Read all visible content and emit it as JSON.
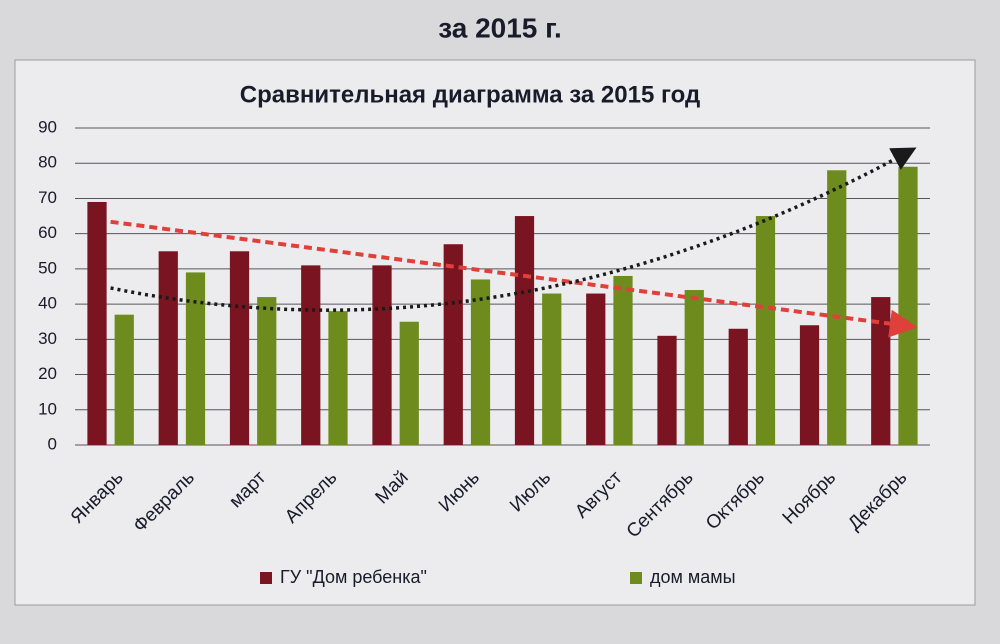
{
  "slide_title": "за 2015 г.",
  "chart_data": {
    "type": "bar",
    "title": "Сравнительная диаграмма за 2015 год",
    "categories": [
      "Январь",
      "Февраль",
      "март",
      "Апрель",
      "Май",
      "Июнь",
      "Июль",
      "Август",
      "Сентябрь",
      "Октябрь",
      "Ноябрь",
      "Декабрь"
    ],
    "series": [
      {
        "name": "ГУ \"Дом ребенка\"",
        "color": "#7a1420",
        "values": [
          69,
          55,
          55,
          51,
          51,
          57,
          65,
          43,
          31,
          33,
          34,
          42
        ],
        "trendline": "linear",
        "trend_color": "#e0403a"
      },
      {
        "name": "дом мамы",
        "color": "#6e8c1e",
        "values": [
          37,
          49,
          42,
          38,
          35,
          47,
          43,
          48,
          44,
          65,
          78,
          79
        ],
        "trendline": "polynomial",
        "trend_color": "#1a1a1a"
      }
    ],
    "ylim": [
      0,
      90
    ],
    "yticks": [
      0,
      10,
      20,
      30,
      40,
      50,
      60,
      70,
      80,
      90
    ],
    "grid": true,
    "legend": "bottom"
  }
}
